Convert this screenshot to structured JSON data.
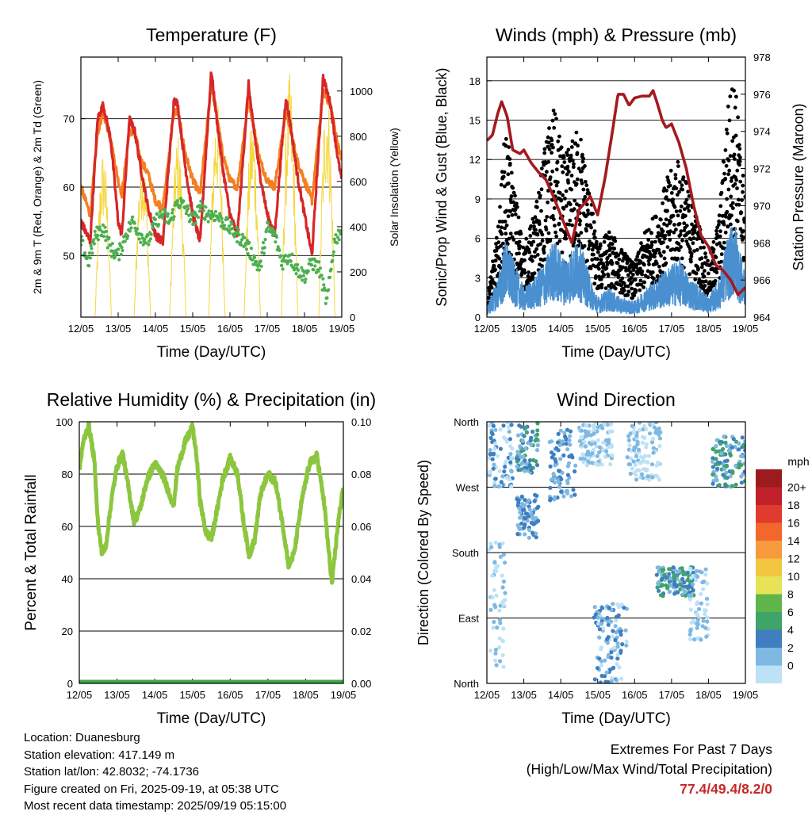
{
  "common": {
    "x_tick_labels": [
      "12/05",
      "13/05",
      "14/05",
      "15/05",
      "16/05",
      "17/05",
      "18/05",
      "19/05"
    ],
    "x_axis_label": "Time (Day/UTC)"
  },
  "chart_data": [
    {
      "id": "temperature",
      "type": "line",
      "title": "Temperature (F)",
      "ylabel_left": "2m & 9m T (Red, Orange) & 2m Td (Green)",
      "ylabel_right": "Solar Insolation (Yellow)",
      "xlabel": "Time (Day/UTC)",
      "xlim_days": [
        0,
        7
      ],
      "ylim_left": [
        41,
        79
      ],
      "yticks_left": [
        50,
        60,
        70
      ],
      "ylim_right": [
        0,
        1150
      ],
      "yticks_right": [
        0,
        200,
        400,
        600,
        800,
        1000
      ],
      "gridlines": [
        50,
        60,
        70
      ],
      "series": [
        {
          "name": "2m T",
          "color": "#d62728",
          "x": [
            0,
            0.25,
            0.45,
            0.6,
            0.8,
            1.0,
            1.1,
            1.3,
            1.45,
            1.6,
            1.8,
            2.0,
            2.2,
            2.5,
            2.6,
            2.8,
            3.0,
            3.2,
            3.5,
            3.6,
            3.8,
            4.0,
            4.2,
            4.5,
            4.6,
            4.8,
            5.0,
            5.2,
            5.5,
            5.6,
            5.8,
            6.0,
            6.2,
            6.5,
            6.7,
            6.9,
            7.0
          ],
          "y": [
            55,
            52,
            70,
            72,
            67,
            55,
            53,
            70,
            68,
            63,
            57,
            53,
            52,
            73,
            72,
            63,
            56,
            52,
            77,
            72,
            63,
            56,
            53,
            75,
            70,
            62,
            56,
            53,
            73,
            70,
            62,
            56,
            50,
            76,
            72,
            64,
            61
          ]
        },
        {
          "name": "9m T",
          "color": "#f57f20",
          "x": [
            0,
            0.25,
            0.45,
            0.6,
            0.8,
            1.0,
            1.1,
            1.3,
            1.45,
            1.6,
            1.8,
            2.0,
            2.2,
            2.5,
            2.6,
            2.8,
            3.0,
            3.2,
            3.5,
            3.6,
            3.8,
            4.0,
            4.2,
            4.5,
            4.6,
            4.8,
            5.0,
            5.2,
            5.5,
            5.6,
            5.8,
            6.0,
            6.2,
            6.5,
            6.7,
            6.9,
            7.0
          ],
          "y": [
            60,
            56,
            68,
            71,
            67,
            61,
            59,
            68,
            68,
            64,
            62,
            58,
            57,
            71,
            71,
            65,
            61,
            59,
            75,
            72,
            65,
            61,
            60,
            73,
            70,
            64,
            61,
            60,
            71,
            69,
            64,
            61,
            58,
            74,
            72,
            66,
            64
          ]
        },
        {
          "name": "2m Td",
          "color": "#4caf50",
          "x": [
            0,
            0.2,
            0.4,
            0.6,
            0.8,
            1.0,
            1.2,
            1.4,
            1.6,
            1.8,
            2.0,
            2.2,
            2.4,
            2.6,
            2.8,
            3.0,
            3.2,
            3.4,
            3.6,
            3.8,
            4.0,
            4.2,
            4.4,
            4.6,
            4.8,
            5.0,
            5.2,
            5.4,
            5.6,
            5.8,
            6.0,
            6.2,
            6.4,
            6.6,
            6.8,
            7.0
          ],
          "y": [
            52,
            49,
            53,
            54,
            51,
            50,
            53,
            55,
            53,
            52,
            55,
            56,
            55,
            58,
            57,
            55,
            57,
            56,
            56,
            55,
            54,
            53,
            52,
            50,
            48,
            54,
            53,
            49,
            50,
            48,
            47,
            49,
            48,
            43,
            52,
            54
          ]
        },
        {
          "name": "Solar Insolation",
          "color": "#f5d742",
          "axis": "right",
          "peaks": [
            {
              "day": 0.6,
              "value": 750
            },
            {
              "day": 1.65,
              "value": 780
            },
            {
              "day": 2.6,
              "value": 820
            },
            {
              "day": 3.65,
              "value": 970
            },
            {
              "day": 4.6,
              "value": 900
            },
            {
              "day": 5.6,
              "value": 1080
            },
            {
              "day": 6.6,
              "value": 1040
            }
          ]
        }
      ]
    },
    {
      "id": "winds",
      "type": "scatter",
      "title": "Winds (mph) & Pressure (mb)",
      "ylabel_left": "Sonic/Prop Wind & Gust (Blue, Black)",
      "ylabel_right": "Station Pressure (Maroon)",
      "xlabel": "Time (Day/UTC)",
      "xlim_days": [
        0,
        7
      ],
      "ylim_left": [
        0,
        19.8
      ],
      "yticks_left": [
        0,
        3,
        6,
        9,
        12,
        15,
        18
      ],
      "ylim_right": [
        964,
        978
      ],
      "yticks_right": [
        964,
        966,
        968,
        970,
        972,
        974,
        976,
        978
      ],
      "gridlines": [
        3,
        6,
        9,
        12,
        15,
        18
      ],
      "series": [
        {
          "name": "Gust",
          "color": "#000000",
          "x": [
            0,
            0.3,
            0.5,
            0.7,
            1.0,
            1.3,
            1.6,
            1.8,
            2.1,
            2.3,
            2.5,
            2.8,
            3.0,
            3.3,
            3.6,
            4.0,
            4.3,
            4.6,
            4.9,
            5.2,
            5.5,
            5.8,
            6.0,
            6.3,
            6.5,
            6.7,
            6.9,
            7.0
          ],
          "y": [
            1,
            5,
            11,
            8,
            4,
            6,
            10,
            12,
            9,
            10,
            11,
            7,
            4,
            5,
            4,
            3,
            5,
            6,
            8,
            9,
            7,
            5,
            3,
            6,
            12,
            14,
            9,
            7
          ]
        },
        {
          "name": "Sonic/Prop Wind",
          "color": "#4a90d0",
          "x": [
            0,
            0.3,
            0.5,
            0.7,
            1.0,
            1.3,
            1.6,
            1.8,
            2.1,
            2.3,
            2.5,
            2.8,
            3.0,
            3.3,
            3.6,
            4.0,
            4.3,
            4.6,
            4.9,
            5.2,
            5.5,
            5.8,
            6.0,
            6.3,
            6.5,
            6.7,
            6.9,
            7.0
          ],
          "y": [
            0.5,
            2,
            4,
            3,
            1.5,
            2,
            3,
            4,
            3,
            3.5,
            4,
            2,
            1,
            1.5,
            1,
            0.8,
            1.5,
            2,
            2.5,
            3,
            2,
            1.5,
            1,
            2,
            4,
            5,
            3,
            2
          ]
        },
        {
          "name": "Station Pressure",
          "color": "#a31b1f",
          "axis": "right",
          "x": [
            0,
            0.15,
            0.3,
            0.4,
            0.55,
            0.7,
            0.9,
            1.0,
            1.2,
            1.4,
            1.6,
            1.8,
            2.0,
            2.3,
            2.5,
            2.8,
            3.0,
            3.2,
            3.4,
            3.55,
            3.7,
            3.85,
            4.0,
            4.2,
            4.4,
            4.5,
            4.6,
            4.75,
            4.85,
            5.0,
            5.2,
            5.4,
            5.6,
            5.8,
            6.0,
            6.2,
            6.4,
            6.6,
            6.8,
            7.0
          ],
          "y": [
            973.5,
            973.8,
            975.0,
            975.6,
            974.8,
            973.0,
            972.8,
            973.0,
            972.3,
            971.8,
            971.4,
            970.5,
            969.5,
            968.0,
            969.8,
            970.5,
            969.5,
            971.5,
            974.0,
            976.0,
            976.0,
            975.4,
            975.8,
            975.9,
            975.9,
            976.2,
            975.6,
            974.6,
            974.2,
            974.4,
            973.4,
            972.0,
            970.0,
            968.4,
            967.8,
            966.8,
            966.5,
            966.0,
            965.2,
            965.6
          ]
        }
      ]
    },
    {
      "id": "humidity",
      "type": "line",
      "title": "Relative Humidity (%) & Precipitation (in)",
      "ylabel_left": "Percent & Total Rainfall",
      "ylabel_right": "",
      "xlabel": "Time (Day/UTC)",
      "xlim_days": [
        0,
        7
      ],
      "ylim_left": [
        0,
        100
      ],
      "yticks_left": [
        0,
        20,
        40,
        60,
        80,
        100
      ],
      "ylim_right": [
        0,
        0.1
      ],
      "yticks_right": [
        "0.00",
        "0.02",
        "0.04",
        "0.06",
        "0.08",
        "0.10"
      ],
      "gridlines": [
        20,
        40,
        60,
        80
      ],
      "series": [
        {
          "name": "Relative Humidity",
          "color": "#8cc63f",
          "x": [
            0,
            0.1,
            0.25,
            0.4,
            0.5,
            0.6,
            0.7,
            0.85,
            1.0,
            1.15,
            1.3,
            1.45,
            1.6,
            1.8,
            2.0,
            2.2,
            2.4,
            2.5,
            2.6,
            2.8,
            3.0,
            3.1,
            3.2,
            3.35,
            3.5,
            3.65,
            3.8,
            4.0,
            4.2,
            4.35,
            4.5,
            4.65,
            4.8,
            5.0,
            5.2,
            5.4,
            5.55,
            5.7,
            5.9,
            6.1,
            6.3,
            6.5,
            6.6,
            6.7,
            6.85,
            7.0
          ],
          "y": [
            82,
            92,
            99,
            85,
            60,
            50,
            52,
            70,
            83,
            88,
            75,
            62,
            66,
            78,
            84,
            80,
            72,
            68,
            82,
            92,
            98,
            88,
            70,
            58,
            55,
            66,
            78,
            86,
            80,
            62,
            49,
            55,
            72,
            80,
            77,
            60,
            45,
            50,
            70,
            84,
            87,
            68,
            52,
            38,
            60,
            76
          ]
        },
        {
          "name": "Total Rainfall",
          "color": "#3ea843",
          "axis": "right",
          "x": [
            0,
            7
          ],
          "y": [
            0,
            0
          ]
        }
      ]
    },
    {
      "id": "wind_direction",
      "type": "scatter",
      "title": "Wind Direction",
      "ylabel_left": "Direction (Colored By Speed)",
      "xlabel": "Time (Day/UTC)",
      "xlim_days": [
        0,
        7
      ],
      "y_categories": [
        "North",
        "East",
        "South",
        "West",
        "North"
      ],
      "ylim_deg": [
        0,
        360
      ],
      "gridlines_deg": [
        90,
        180,
        270
      ],
      "clusters": [
        {
          "x": [
            0.05,
            0.7
          ],
          "y": [
            270,
            360
          ],
          "speed": [
            0,
            6
          ]
        },
        {
          "x": [
            0.05,
            0.5
          ],
          "y": [
            20,
            200
          ],
          "speed": [
            0,
            4
          ]
        },
        {
          "x": [
            0.8,
            1.4
          ],
          "y": [
            200,
            260
          ],
          "speed": [
            2,
            6
          ]
        },
        {
          "x": [
            0.8,
            1.4
          ],
          "y": [
            290,
            360
          ],
          "speed": [
            2,
            8
          ]
        },
        {
          "x": [
            1.7,
            2.4
          ],
          "y": [
            250,
            350
          ],
          "speed": [
            2,
            6
          ]
        },
        {
          "x": [
            2.5,
            3.4
          ],
          "y": [
            300,
            360
          ],
          "speed": [
            0,
            4
          ]
        },
        {
          "x": [
            2.9,
            3.8
          ],
          "y": [
            0,
            110
          ],
          "speed": [
            0,
            6
          ]
        },
        {
          "x": [
            3.8,
            4.7
          ],
          "y": [
            280,
            360
          ],
          "speed": [
            0,
            4
          ]
        },
        {
          "x": [
            4.6,
            5.6
          ],
          "y": [
            120,
            160
          ],
          "speed": [
            2,
            8
          ]
        },
        {
          "x": [
            5.5,
            6.0
          ],
          "y": [
            60,
            160
          ],
          "speed": [
            0,
            4
          ]
        },
        {
          "x": [
            6.1,
            7.0
          ],
          "y": [
            270,
            340
          ],
          "speed": [
            2,
            8
          ]
        }
      ],
      "colorbar": {
        "unit": "mph",
        "labels": [
          "20+",
          "18",
          "16",
          "14",
          "12",
          "10",
          "8",
          "6",
          "4",
          "2",
          "0"
        ],
        "colors": [
          "#9b1b1e",
          "#c0202a",
          "#e03b2f",
          "#f2672b",
          "#f79a3e",
          "#f3c642",
          "#e7e256",
          "#5fb54a",
          "#3fa36a",
          "#3f7fc0",
          "#7fb8e2",
          "#bde2f5"
        ]
      }
    }
  ],
  "info": {
    "location": "Location: Duanesburg",
    "elevation": "Station elevation: 417.149 m",
    "latlon": "Station lat/lon: 42.8032; -74.1736",
    "created": "Figure created on Fri, 2025-09-19, at 05:38 UTC",
    "recent": "Most recent data timestamp: 2025/09/19 05:15:00"
  },
  "extremes": {
    "title": "Extremes For Past 7 Days",
    "subtitle": "(High/Low/Max Wind/Total Precipitation)",
    "values": "77.4/49.4/8.2/0"
  }
}
